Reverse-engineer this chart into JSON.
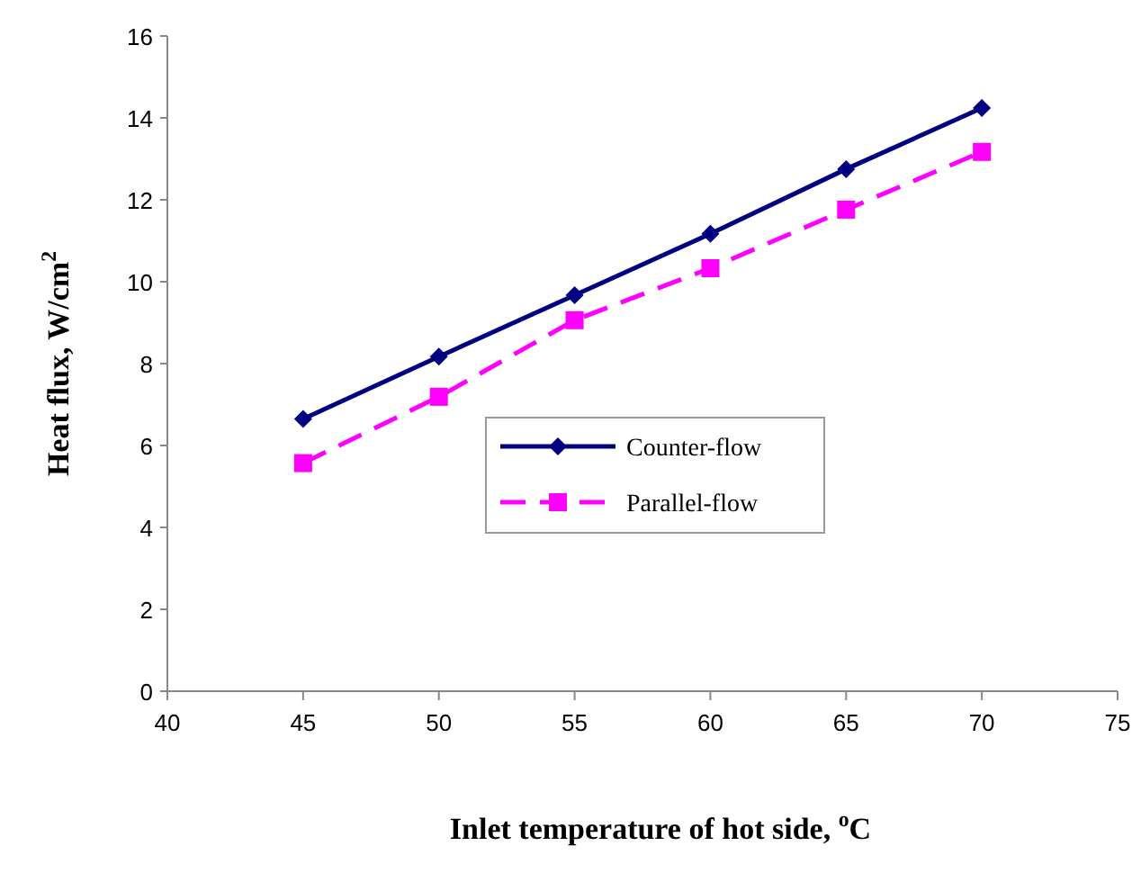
{
  "chart_data": {
    "type": "line",
    "xlabel": "Inlet temperature of hot side, $^{o}$C",
    "ylabel": "Heat flux, W/cm$^{2}$",
    "x": [
      45,
      50,
      55,
      60,
      65,
      70
    ],
    "series": [
      {
        "name": "Counter-flow",
        "color": "#000080",
        "values": [
          6.65,
          8.17,
          9.67,
          11.17,
          12.75,
          14.24
        ],
        "marker": "diamond",
        "line_style": "solid"
      },
      {
        "name": "Parallel-flow",
        "color": "#ff00ff",
        "values": [
          5.57,
          7.19,
          9.06,
          10.33,
          11.76,
          13.17
        ],
        "marker": "square",
        "line_style": "dashed"
      }
    ],
    "xlim": [
      40,
      75
    ],
    "xticks": [
      40,
      45,
      50,
      55,
      60,
      65,
      70,
      75
    ],
    "ylim": [
      0,
      16
    ],
    "yticks": [
      0,
      2,
      4,
      6,
      8,
      10,
      12,
      14,
      16
    ],
    "grid": false,
    "legend": "center"
  }
}
